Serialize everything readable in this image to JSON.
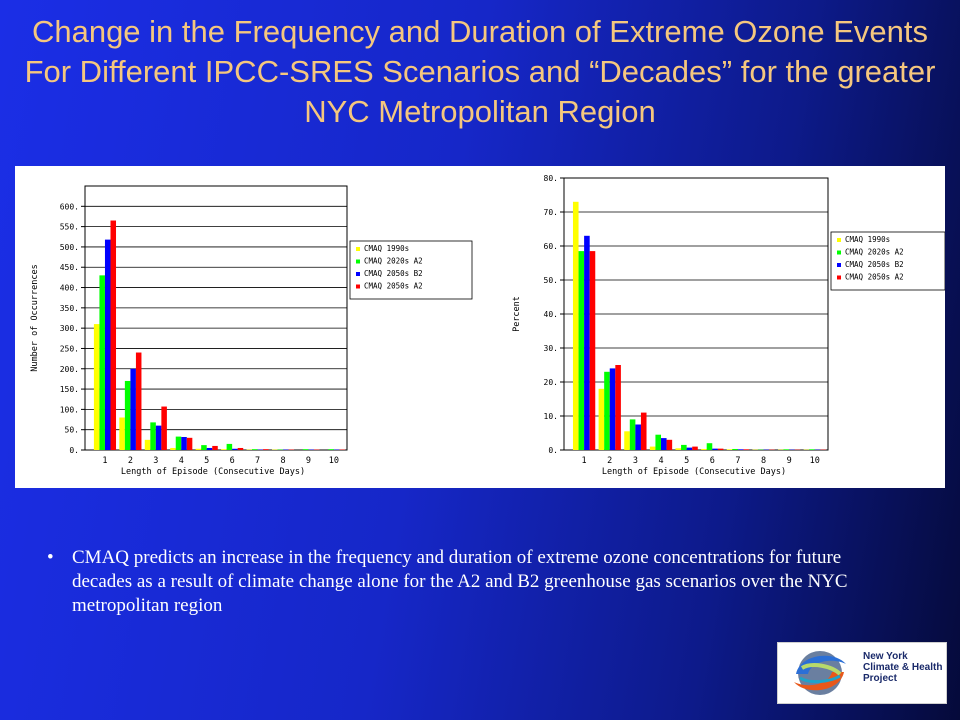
{
  "slide": {
    "title": "Change in the Frequency and Duration of Extreme Ozone Events For Different IPCC-SRES Scenarios and “Decades” for the greater NYC Metropolitan Region",
    "bullet": "CMAQ predicts an increase in the frequency and duration of extreme ozone concentrations for future decades as a result of climate change alone for the A2 and B2 greenhouse gas scenarios over the NYC metropolitan region",
    "logo_text": "New York\nClimate & Health\nProject"
  },
  "colors": {
    "background": "#1b2ee6",
    "title": "#f5c77e",
    "series": [
      "#ffff00",
      "#00ff00",
      "#0000ff",
      "#ff0000"
    ]
  },
  "chart_data": [
    {
      "type": "bar",
      "title": "",
      "xlabel": "Length of Episode (Consecutive Days)",
      "ylabel": "Number of Occurrences",
      "ylim": [
        0,
        650
      ],
      "yticks": [
        "0.",
        "50.",
        "100.",
        "150.",
        "200.",
        "250.",
        "300.",
        "350.",
        "400.",
        "450.",
        "500.",
        "550.",
        "600."
      ],
      "categories": [
        "1",
        "2",
        "3",
        "4",
        "5",
        "6",
        "7",
        "8",
        "9",
        "10"
      ],
      "legend_position": "right",
      "series": [
        {
          "name": "CMAQ 1990s",
          "values": [
            310,
            80,
            25,
            5,
            3,
            2,
            1,
            1,
            0,
            0
          ]
        },
        {
          "name": "CMAQ 2020s A2",
          "values": [
            430,
            170,
            68,
            33,
            12,
            15,
            2,
            1,
            2,
            2
          ]
        },
        {
          "name": "CMAQ 2050s B2",
          "values": [
            518,
            200,
            60,
            32,
            5,
            3,
            1,
            1,
            1,
            1
          ]
        },
        {
          "name": "CMAQ 2050s A2",
          "values": [
            565,
            240,
            107,
            30,
            10,
            5,
            2,
            1,
            1,
            1
          ]
        }
      ]
    },
    {
      "type": "bar",
      "title": "",
      "xlabel": "Length of Episode (Consecutive Days)",
      "ylabel": "Percent",
      "ylim": [
        0,
        80
      ],
      "yticks": [
        "0.",
        "10.",
        "20.",
        "30.",
        "40.",
        "50.",
        "60.",
        "70.",
        "80."
      ],
      "categories": [
        "1",
        "2",
        "3",
        "4",
        "5",
        "6",
        "7",
        "8",
        "9",
        "10"
      ],
      "legend_position": "right",
      "series": [
        {
          "name": "CMAQ 1990s",
          "values": [
            73,
            18,
            5.5,
            1,
            0.5,
            0.3,
            0.2,
            0.1,
            0.1,
            0.1
          ]
        },
        {
          "name": "CMAQ 2020s A2",
          "values": [
            58.5,
            23,
            9,
            4.5,
            1.5,
            2,
            0.3,
            0.1,
            0.2,
            0.2
          ]
        },
        {
          "name": "CMAQ 2050s B2",
          "values": [
            63,
            24,
            7.5,
            3.5,
            0.7,
            0.4,
            0.2,
            0.1,
            0.1,
            0.1
          ]
        },
        {
          "name": "CMAQ 2050s A2",
          "values": [
            58.5,
            25,
            11,
            3,
            1,
            0.4,
            0.2,
            0.1,
            0.1,
            0.1
          ]
        }
      ]
    }
  ]
}
